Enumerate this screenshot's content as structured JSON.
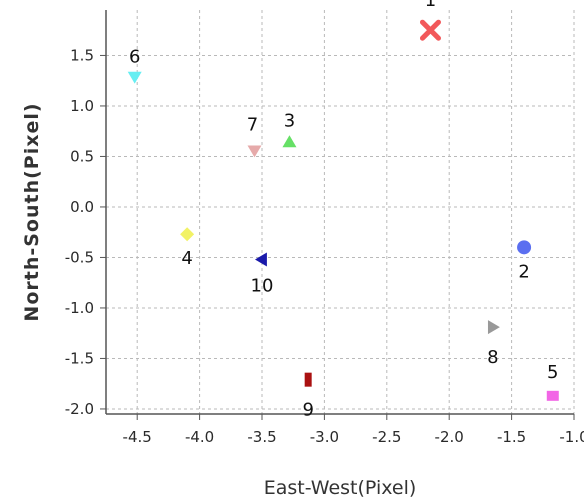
{
  "chart_data": {
    "type": "scatter",
    "title": "",
    "xlabel": "East-West(Pixel)",
    "ylabel": "North-South(Pixel)",
    "xlim": [
      -4.75,
      -1.0
    ],
    "ylim": [
      -2.05,
      1.95
    ],
    "x_ticks": [
      -4.5,
      -4.0,
      -3.5,
      -3.0,
      -2.5,
      -2.0,
      -1.5,
      -1.0
    ],
    "x_tick_labels": [
      "-4.5",
      "-4.0",
      "-3.5",
      "-3.0",
      "-2.5",
      "-2.0",
      "-1.5",
      "-1.0"
    ],
    "y_ticks": [
      1.5,
      1.0,
      0.5,
      0.0,
      -0.5,
      -1.0,
      -1.5,
      -2.0
    ],
    "y_tick_labels": [
      "1.5",
      "1.0",
      "0.5",
      "0.0",
      "-0.5",
      "-1.0",
      "-1.5",
      "-2.0"
    ],
    "grid": true,
    "points": [
      {
        "label": "1",
        "x": -2.15,
        "y": 1.75,
        "marker": "x",
        "color": "#f2585a"
      },
      {
        "label": "2",
        "x": -1.4,
        "y": -0.4,
        "marker": "circle",
        "color": "#5b6ff0"
      },
      {
        "label": "3",
        "x": -3.28,
        "y": 0.64,
        "marker": "triangle-up",
        "color": "#66e066"
      },
      {
        "label": "4",
        "x": -4.1,
        "y": -0.27,
        "marker": "diamond",
        "color": "#f2f266"
      },
      {
        "label": "5",
        "x": -1.17,
        "y": -1.87,
        "marker": "square",
        "color": "#f266e6"
      },
      {
        "label": "6",
        "x": -4.52,
        "y": 1.29,
        "marker": "triangle-down",
        "color": "#66eef2"
      },
      {
        "label": "7",
        "x": -3.56,
        "y": 0.56,
        "marker": "triangle-down",
        "color": "#e6aaaa"
      },
      {
        "label": "8",
        "x": -1.65,
        "y": -1.19,
        "marker": "triangle-right",
        "color": "#999999"
      },
      {
        "label": "9",
        "x": -3.13,
        "y": -1.71,
        "marker": "rect-tall",
        "color": "#aa1111"
      },
      {
        "label": "10",
        "x": -3.5,
        "y": -0.52,
        "marker": "triangle-left",
        "color": "#1a1aaa"
      }
    ]
  }
}
